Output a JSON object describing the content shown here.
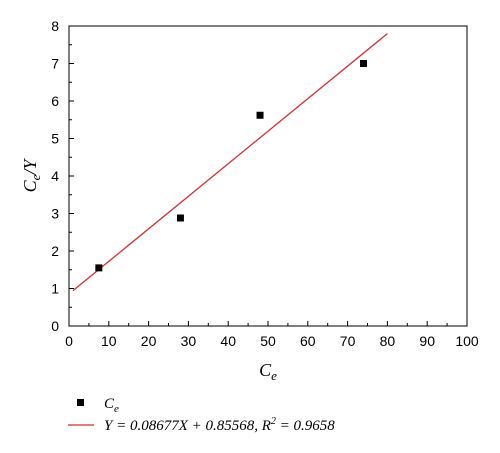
{
  "chart_data": {
    "type": "scatter",
    "x_ticks": [
      "0",
      "10",
      "20",
      "30",
      "40",
      "50",
      "60",
      "70",
      "80",
      "90",
      "100"
    ],
    "y_ticks": [
      "0",
      "1",
      "2",
      "3",
      "4",
      "5",
      "6",
      "7",
      "8"
    ],
    "xlim": [
      0,
      100
    ],
    "ylim": [
      0,
      8
    ],
    "xlabel_main": "C",
    "xlabel_sub": "e",
    "ylabel_main": "C",
    "ylabel_sub": "e",
    "ylabel_suffix": "/Y",
    "grid": false,
    "legend_position": "bottom",
    "series": [
      {
        "name": "Ce",
        "marker": "square",
        "color": "#000000",
        "x": [
          7.5,
          28,
          48,
          74
        ],
        "y": [
          1.55,
          2.88,
          5.62,
          7.0
        ]
      }
    ],
    "fit_line": {
      "color": "#d32f2f",
      "slope": 0.08677,
      "intercept": 0.85568,
      "x_start": 1,
      "x_end": 80
    },
    "legend": {
      "marker_main": "C",
      "marker_sub": "e",
      "line_text_1": "Y = 0.08677X + 0.85568, R",
      "line_sup": "2",
      "line_text_2": " = 0.9658"
    }
  }
}
